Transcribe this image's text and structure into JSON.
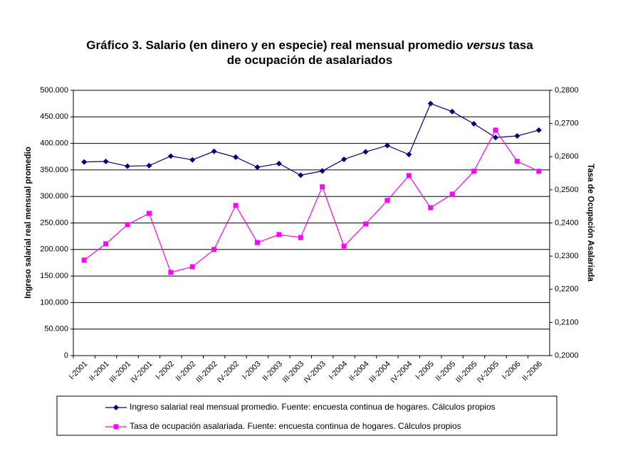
{
  "chart_data": {
    "type": "line",
    "title": [
      "Gráfico 3. Salario (en dinero y en especie) real mensual promedio",
      "versus",
      "tasa",
      "de ocupación de asalariados"
    ],
    "y_label": "Ingreso salarial real mensual promedio",
    "y2_label": "Tasa de Ocupación Asalariada",
    "categories": [
      "I-2001",
      "II-2001",
      "III-2001",
      "IV-2001",
      "I-2002",
      "II-2002",
      "III-2002",
      "IV-2002",
      "I-2003",
      "II-2003",
      "III-2003",
      "IV-2003",
      "I-2004",
      "II-2004",
      "III-2004",
      "IV-2004",
      "I-2005",
      "II-2005",
      "III-2005",
      "IV-2005",
      "I-2006",
      "II-2006"
    ],
    "series": [
      {
        "name": "Ingreso salarial real mensual promedio. Fuente: encuesta continua de hogares. Cálculos propios",
        "color": "#000080",
        "marker": "diamond",
        "values": [
          365000,
          366000,
          357000,
          358000,
          376000,
          369000,
          385000,
          374000,
          355000,
          362000,
          340000,
          348000,
          370000,
          384000,
          396000,
          379000,
          475000,
          460000,
          437000,
          411000,
          414000,
          425000
        ]
      },
      {
        "name": "Tasa de ocupación asalariada. Fuente: encuesta continua de hogares. Cálculos propios",
        "color": "#ff00ff",
        "marker": "square",
        "axis": "y2",
        "values": [
          0.2288,
          0.2337,
          0.2395,
          0.2429,
          0.2251,
          0.2268,
          0.232,
          0.2453,
          0.2341,
          0.2365,
          0.2356,
          0.2509,
          0.233,
          0.2397,
          0.2468,
          0.2543,
          0.2446,
          0.2487,
          0.2556,
          0.268,
          0.2586,
          0.2556
        ]
      }
    ],
    "ylim": [
      0,
      500000
    ],
    "yticks": [
      0,
      {
        "value": 50000,
        "label": "50.000"
      },
      {
        "value": 100000,
        "label": "100.000"
      },
      {
        "value": 150000,
        "label": "150.000"
      },
      {
        "value": 200000,
        "label": "200.000"
      },
      {
        "value": 250000,
        "label": "250.000"
      },
      {
        "value": 300000,
        "label": "300.000"
      },
      {
        "value": 350000,
        "label": "350.000"
      },
      {
        "value": 400000,
        "label": "400.000"
      },
      {
        "value": 450000,
        "label": "450.000"
      },
      {
        "value": 500000,
        "label": "500.000"
      }
    ],
    "y2lim": [
      0.2,
      0.28
    ],
    "y2ticks": [
      {
        "value": 0.2,
        "label": "0,2000"
      },
      {
        "value": 0.21,
        "label": "0,2100"
      },
      {
        "value": 0.22,
        "label": "0,2200"
      },
      {
        "value": 0.23,
        "label": "0,2300"
      },
      {
        "value": 0.24,
        "label": "0,2400"
      },
      {
        "value": 0.25,
        "label": "0,2500"
      },
      {
        "value": 0.26,
        "label": "0,2600"
      },
      {
        "value": 0.27,
        "label": "0,2700"
      },
      {
        "value": 0.28,
        "label": "0,2800"
      }
    ],
    "grid": true,
    "legend": "bottom"
  }
}
